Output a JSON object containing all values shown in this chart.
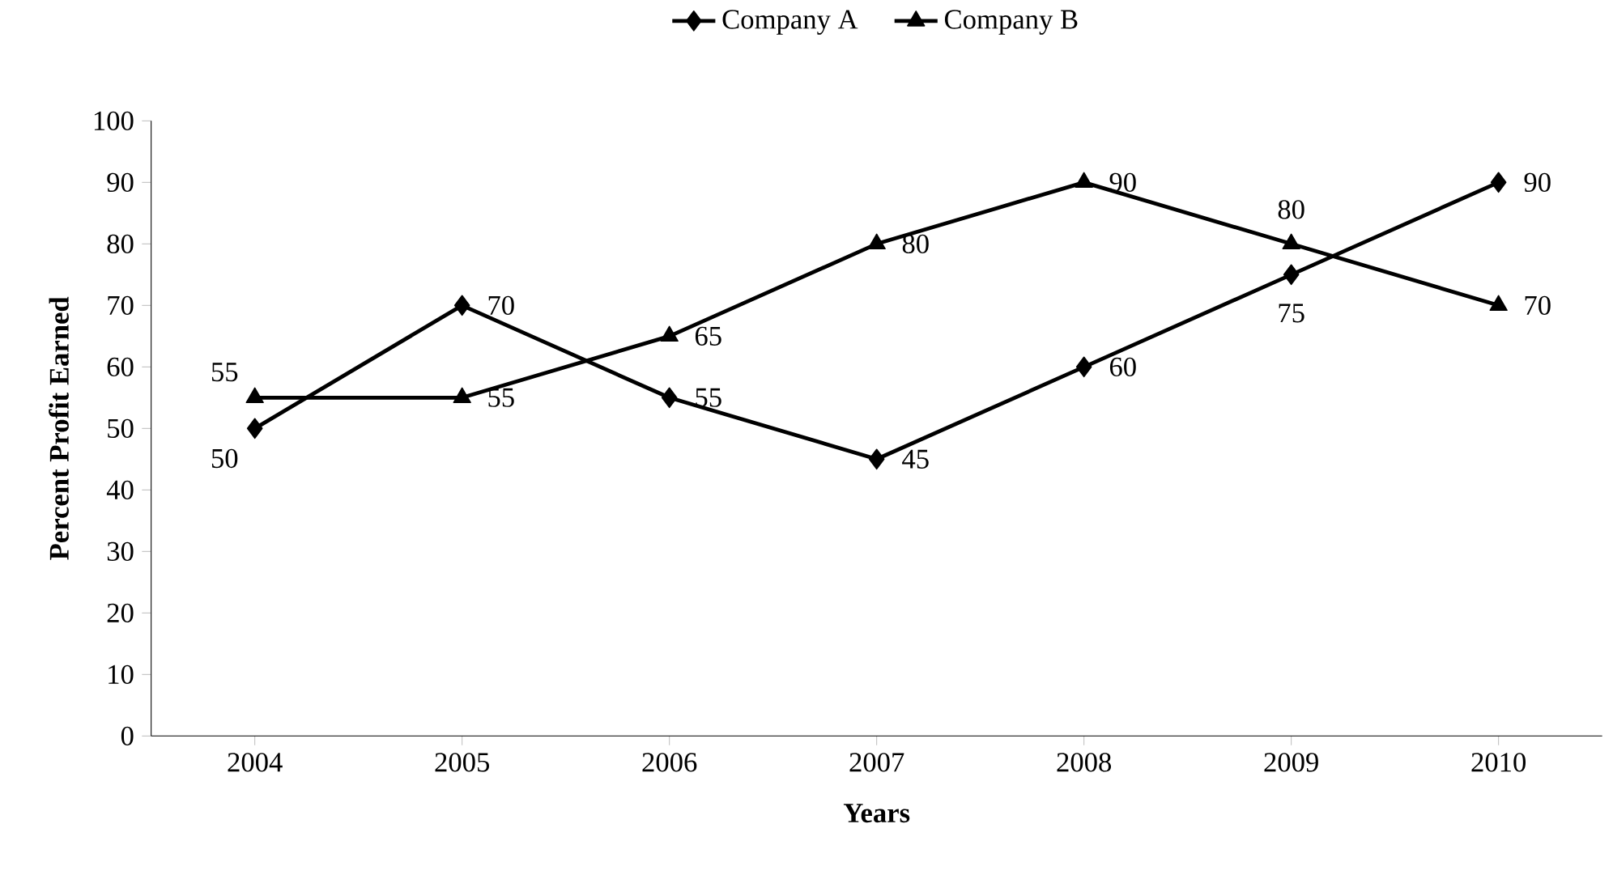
{
  "chart_data": {
    "type": "line",
    "xlabel": "Years",
    "ylabel": "Percent Profit Earned",
    "categories": [
      "2004",
      "2005",
      "2006",
      "2007",
      "2008",
      "2009",
      "2010"
    ],
    "series": [
      {
        "name": "Company A",
        "color": "#000000",
        "marker": "diamond",
        "values": [
          50,
          70,
          55,
          45,
          60,
          75,
          90
        ]
      },
      {
        "name": "Company B",
        "color": "#000000",
        "marker": "triangle",
        "values": [
          55,
          55,
          65,
          80,
          90,
          80,
          70
        ]
      }
    ],
    "ylim": [
      0,
      100
    ],
    "yticks": [
      0,
      10,
      20,
      30,
      40,
      50,
      60,
      70,
      80,
      90,
      100
    ],
    "legend": "top",
    "data_labels": true,
    "grid": false,
    "line_style": "solid"
  }
}
